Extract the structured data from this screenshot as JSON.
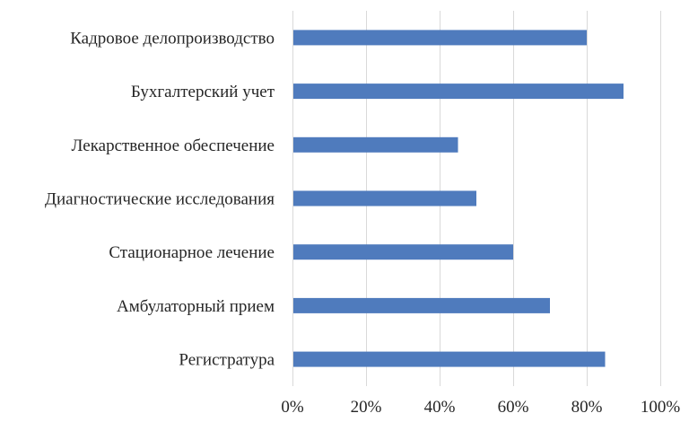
{
  "chart_data": {
    "type": "bar",
    "orientation": "horizontal",
    "categories": [
      "Кадровое делопроизводство",
      "Бухгалтерский учет",
      "Лекарственное обеспечение",
      "Диагностические исследования",
      "Стационарное лечение",
      "Амбулаторный прием",
      "Регистратура"
    ],
    "values": [
      80,
      90,
      45,
      50,
      60,
      70,
      85
    ],
    "unit": "%",
    "xlim": [
      0,
      100
    ],
    "x_ticks": [
      "0%",
      "20%",
      "40%",
      "60%",
      "80%",
      "100%"
    ],
    "grid": true,
    "legend": false,
    "colors": {
      "bar": "#4f7bbd",
      "grid": "#d9d9d9",
      "text": "#262626"
    }
  }
}
